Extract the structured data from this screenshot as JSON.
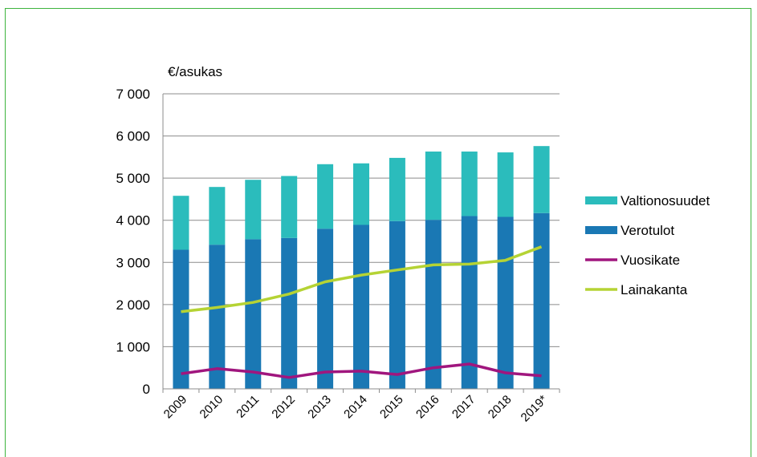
{
  "chart_data": {
    "type": "bar",
    "ylabel": "€/asukas",
    "ylim": [
      0,
      7000
    ],
    "yticks": [
      0,
      1000,
      2000,
      3000,
      4000,
      5000,
      6000,
      7000
    ],
    "ytick_labels": [
      "0",
      "1 000",
      "2 000",
      "3 000",
      "4 000",
      "5 000",
      "6 000",
      "7 000"
    ],
    "categories": [
      "2009",
      "2010",
      "2011",
      "2012",
      "2013",
      "2014",
      "2015",
      "2016",
      "2017",
      "2018",
      "2019*"
    ],
    "grid": true,
    "legend_position": "right",
    "bar_series": [
      {
        "name": "Verotulot",
        "color": "#1a78b4",
        "values": [
          3300,
          3420,
          3550,
          3580,
          3800,
          3890,
          3980,
          4010,
          4100,
          4080,
          4170
        ]
      },
      {
        "name": "Valtionosuudet",
        "color": "#2bbcbc",
        "values": [
          1280,
          1370,
          1410,
          1470,
          1530,
          1460,
          1500,
          1620,
          1530,
          1530,
          1590
        ]
      }
    ],
    "line_series": [
      {
        "name": "Vuosikate",
        "color": "#a0167e",
        "values": [
          360,
          480,
          400,
          270,
          400,
          420,
          340,
          500,
          590,
          380,
          310
        ]
      },
      {
        "name": "Lainakanta",
        "color": "#b5d334",
        "values": [
          1830,
          1930,
          2050,
          2250,
          2540,
          2700,
          2820,
          2940,
          2960,
          3050,
          3370
        ]
      }
    ],
    "legend_order": [
      "Valtionosuudet",
      "Verotulot",
      "Vuosikate",
      "Lainakanta"
    ]
  }
}
